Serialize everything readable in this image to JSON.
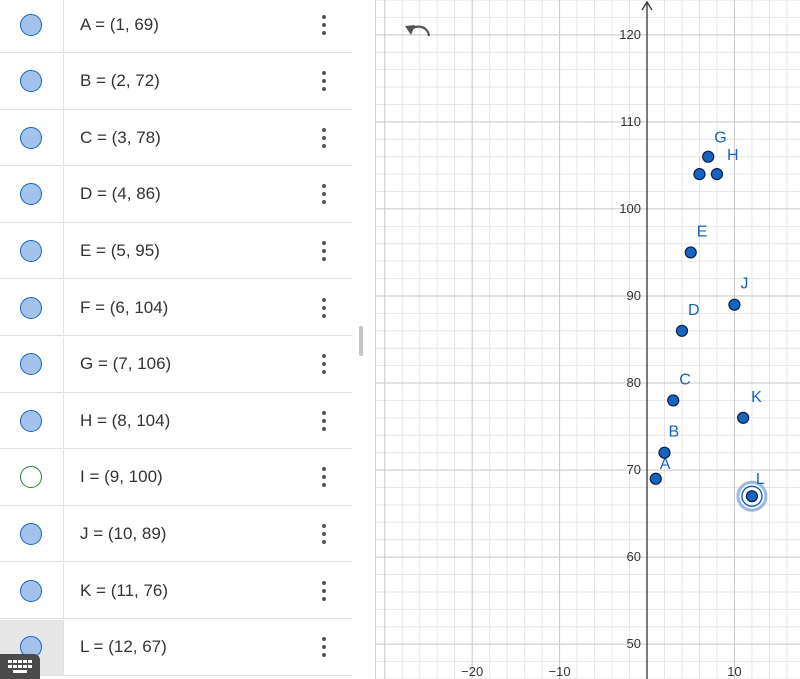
{
  "algebra_items": [
    {
      "name": "A",
      "text": "A = (1, 69)",
      "visible": true,
      "selected": false
    },
    {
      "name": "B",
      "text": "B = (2, 72)",
      "visible": true,
      "selected": false
    },
    {
      "name": "C",
      "text": "C = (3, 78)",
      "visible": true,
      "selected": false
    },
    {
      "name": "D",
      "text": "D = (4, 86)",
      "visible": true,
      "selected": false
    },
    {
      "name": "E",
      "text": "E = (5, 95)",
      "visible": true,
      "selected": false
    },
    {
      "name": "F",
      "text": "F = (6, 104)",
      "visible": true,
      "selected": false
    },
    {
      "name": "G",
      "text": "G = (7, 106)",
      "visible": true,
      "selected": false
    },
    {
      "name": "H",
      "text": "H = (8, 104)",
      "visible": true,
      "selected": false
    },
    {
      "name": "I",
      "text": "I = (9, 100)",
      "visible": false,
      "selected": false
    },
    {
      "name": "J",
      "text": "J = (10, 89)",
      "visible": true,
      "selected": false
    },
    {
      "name": "K",
      "text": "K = (11, 76)",
      "visible": true,
      "selected": false
    },
    {
      "name": "L",
      "text": "L = (12, 67)",
      "visible": true,
      "selected": true
    }
  ],
  "colors": {
    "point_fill": "#1565c0",
    "point_stroke": "#0d1b4a",
    "marble_fill": "#a3c2ec",
    "grid_minor": "#e6e6e6",
    "grid_major": "#c8c8c8",
    "axis": "#333333"
  },
  "icons": {
    "undo": "undo-arrow-icon",
    "menu": "kebab-menu-icon",
    "keyboard": "keyboard-icon"
  },
  "chart_data": {
    "type": "scatter",
    "xlim": [
      -31,
      17.5
    ],
    "ylim": [
      46,
      124
    ],
    "x_ticks": [
      -20,
      -10,
      10
    ],
    "y_ticks": [
      50,
      60,
      70,
      80,
      90,
      100,
      110,
      120
    ],
    "grid": true,
    "points": [
      {
        "label": "A",
        "x": 1,
        "y": 69
      },
      {
        "label": "B",
        "x": 2,
        "y": 72
      },
      {
        "label": "C",
        "x": 3,
        "y": 78
      },
      {
        "label": "D",
        "x": 4,
        "y": 86
      },
      {
        "label": "E",
        "x": 5,
        "y": 95
      },
      {
        "label": "F",
        "x": 6,
        "y": 104
      },
      {
        "label": "G",
        "x": 7,
        "y": 106
      },
      {
        "label": "H",
        "x": 8,
        "y": 104
      },
      {
        "label": "J",
        "x": 10,
        "y": 89
      },
      {
        "label": "K",
        "x": 11,
        "y": 76
      },
      {
        "label": "L",
        "x": 12,
        "y": 67,
        "selected": true
      }
    ],
    "labeled_points": [
      "A",
      "B",
      "C",
      "D",
      "E",
      "G",
      "H",
      "J",
      "K",
      "L"
    ]
  }
}
